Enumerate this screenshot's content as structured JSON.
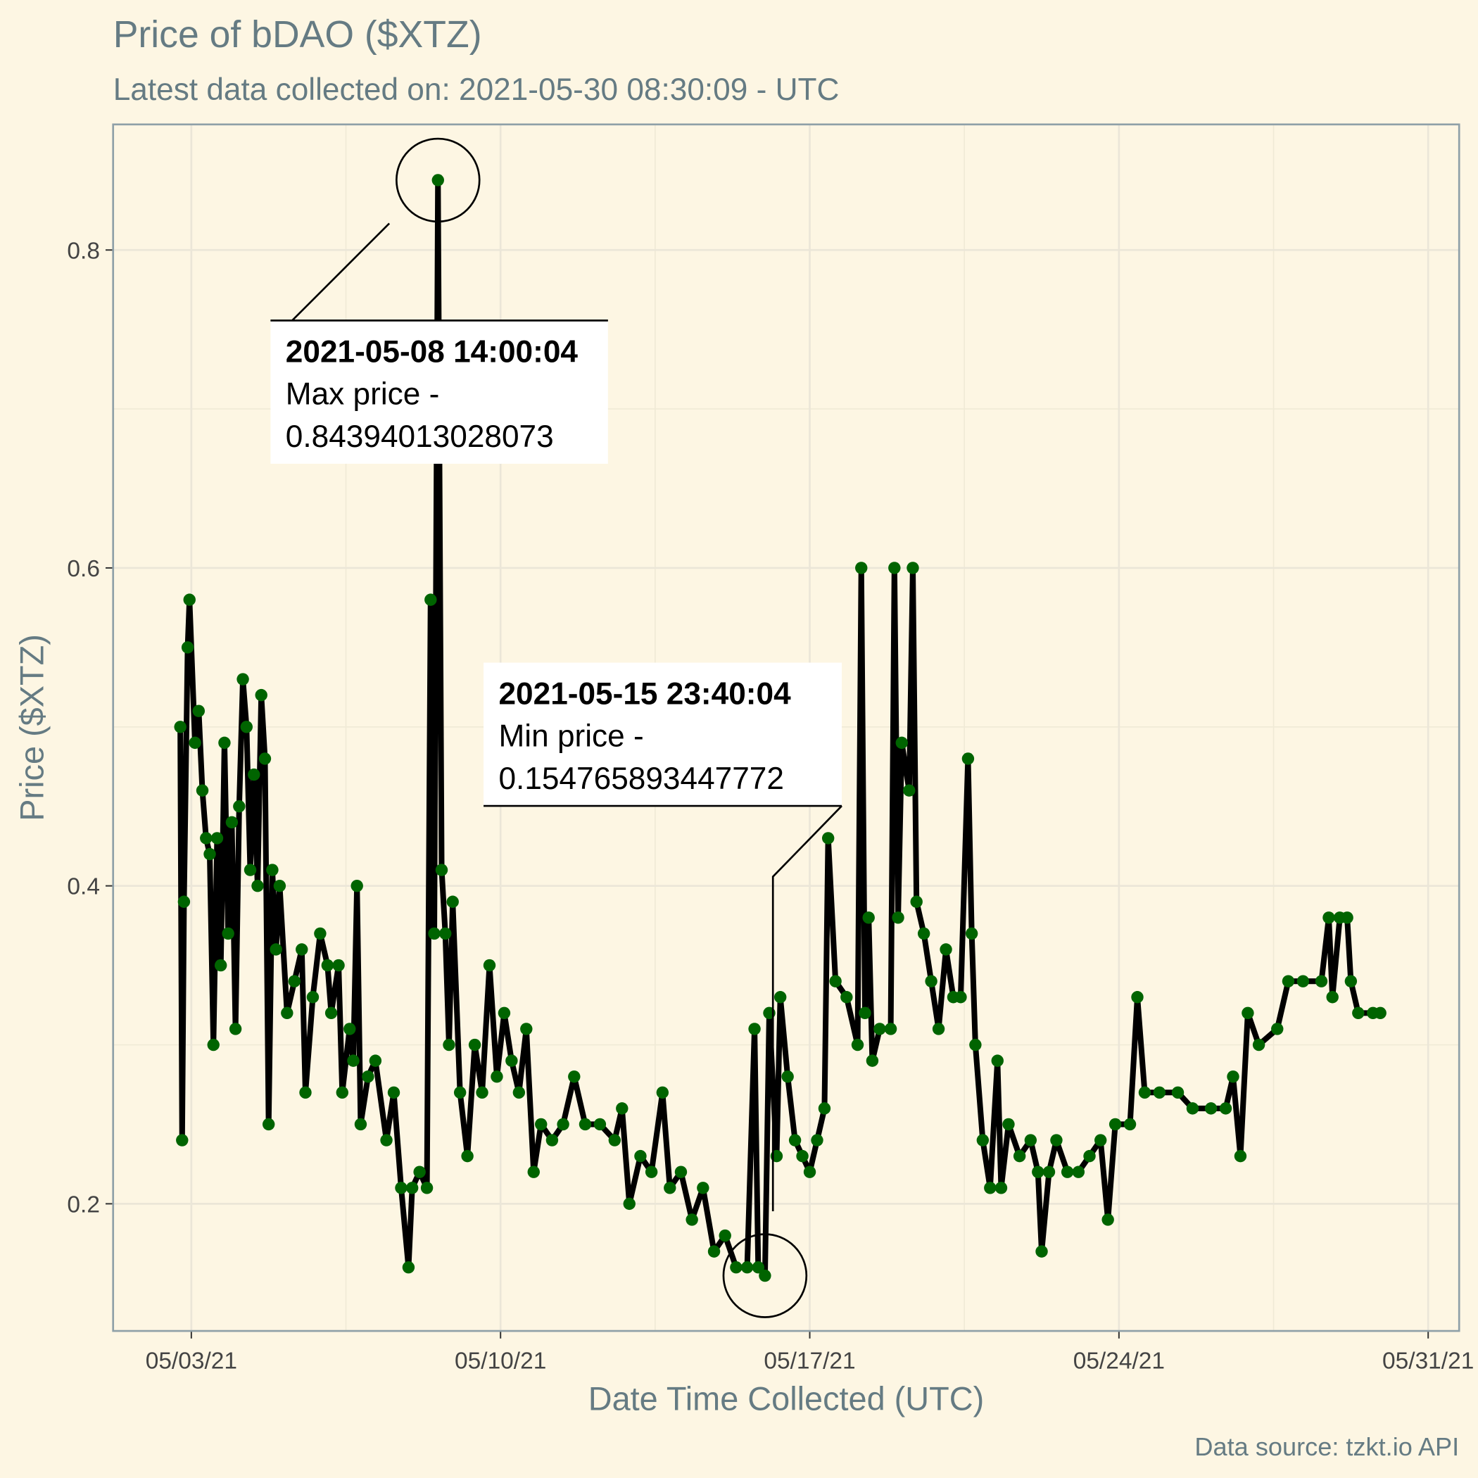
{
  "chart_data": {
    "type": "line",
    "title": "Price of bDAO ($XTZ)",
    "subtitle": "Latest data collected on: 2021-05-30 08:30:09  - UTC",
    "x_label": "Date Time Collected (UTC)",
    "y_label": "Price ($XTZ)",
    "caption": "Data source: tzkt.io API",
    "line_color": "#000000",
    "point_color": "#006400",
    "grid": true,
    "xlim": [
      "2021-05-01 05:30",
      "2021-05-31 16:50"
    ],
    "ylim": [
      0.12,
      0.879
    ],
    "xticks": [
      {
        "value": "2021-05-03 00:00",
        "label": "05/03/21"
      },
      {
        "value": "2021-05-10 00:00",
        "label": "05/10/21"
      },
      {
        "value": "2021-05-17 00:00",
        "label": "05/17/21"
      },
      {
        "value": "2021-05-24 00:00",
        "label": "05/24/21"
      },
      {
        "value": "2021-05-31 00:00",
        "label": "05/31/21"
      }
    ],
    "minor_xticks": [
      "2021-05-06 12:00",
      "2021-05-13 12:00",
      "2021-05-20 12:00",
      "2021-05-27 12:00"
    ],
    "yticks": [
      0.2,
      0.4,
      0.6,
      0.8
    ],
    "minor_yticks": [
      0.3,
      0.5,
      0.7
    ],
    "x": [
      "2021-05-02 18:00",
      "2021-05-02 19:00",
      "2021-05-02 20:00",
      "2021-05-02 22:00",
      "2021-05-02 23:00",
      "2021-05-03 02:00",
      "2021-05-03 04:00",
      "2021-05-03 06:00",
      "2021-05-03 08:00",
      "2021-05-03 10:00",
      "2021-05-03 12:00",
      "2021-05-03 14:00",
      "2021-05-03 16:00",
      "2021-05-03 18:00",
      "2021-05-03 20:00",
      "2021-05-03 22:00",
      "2021-05-04 00:00",
      "2021-05-04 02:00",
      "2021-05-04 04:00",
      "2021-05-04 06:00",
      "2021-05-04 08:00",
      "2021-05-04 10:00",
      "2021-05-04 12:00",
      "2021-05-04 14:00",
      "2021-05-04 16:00",
      "2021-05-04 18:00",
      "2021-05-04 20:00",
      "2021-05-04 22:00",
      "2021-05-05 00:00",
      "2021-05-05 04:00",
      "2021-05-05 08:00",
      "2021-05-05 12:00",
      "2021-05-05 14:00",
      "2021-05-05 18:00",
      "2021-05-05 22:00",
      "2021-05-06 02:00",
      "2021-05-06 04:00",
      "2021-05-06 08:00",
      "2021-05-06 10:00",
      "2021-05-06 14:00",
      "2021-05-06 16:00",
      "2021-05-06 18:00",
      "2021-05-06 20:00",
      "2021-05-07 00:00",
      "2021-05-07 04:00",
      "2021-05-07 10:00",
      "2021-05-07 14:00",
      "2021-05-07 18:00",
      "2021-05-07 22:00",
      "2021-05-08 00:00",
      "2021-05-08 04:00",
      "2021-05-08 08:00",
      "2021-05-08 10:00",
      "2021-05-08 12:00",
      "2021-05-08 14:00",
      "2021-05-08 16:00",
      "2021-05-08 18:00",
      "2021-05-08 20:00",
      "2021-05-08 22:00",
      "2021-05-09 02:00",
      "2021-05-09 06:00",
      "2021-05-09 10:00",
      "2021-05-09 14:00",
      "2021-05-09 18:00",
      "2021-05-09 22:00",
      "2021-05-10 02:00",
      "2021-05-10 06:00",
      "2021-05-10 10:00",
      "2021-05-10 14:00",
      "2021-05-10 18:00",
      "2021-05-10 22:00",
      "2021-05-11 04:00",
      "2021-05-11 10:00",
      "2021-05-11 16:00",
      "2021-05-11 22:00",
      "2021-05-12 06:00",
      "2021-05-12 14:00",
      "2021-05-12 18:00",
      "2021-05-12 22:00",
      "2021-05-13 04:00",
      "2021-05-13 10:00",
      "2021-05-13 16:00",
      "2021-05-13 20:00",
      "2021-05-14 02:00",
      "2021-05-14 08:00",
      "2021-05-14 14:00",
      "2021-05-14 20:00",
      "2021-05-15 02:00",
      "2021-05-15 08:00",
      "2021-05-15 14:00",
      "2021-05-15 18:00",
      "2021-05-15 20:00",
      "2021-05-15 23:40",
      "2021-05-16 02:00",
      "2021-05-16 06:00",
      "2021-05-16 08:00",
      "2021-05-16 12:00",
      "2021-05-16 16:00",
      "2021-05-16 20:00",
      "2021-05-17 00:00",
      "2021-05-17 04:00",
      "2021-05-17 08:00",
      "2021-05-17 10:00",
      "2021-05-17 14:00",
      "2021-05-17 20:00",
      "2021-05-18 02:00",
      "2021-05-18 04:00",
      "2021-05-18 06:00",
      "2021-05-18 08:00",
      "2021-05-18 10:00",
      "2021-05-18 14:00",
      "2021-05-18 20:00",
      "2021-05-18 22:00",
      "2021-05-19 00:00",
      "2021-05-19 02:00",
      "2021-05-19 06:00",
      "2021-05-19 08:00",
      "2021-05-19 10:00",
      "2021-05-19 14:00",
      "2021-05-19 18:00",
      "2021-05-19 22:00",
      "2021-05-20 02:00",
      "2021-05-20 06:00",
      "2021-05-20 10:00",
      "2021-05-20 14:00",
      "2021-05-20 16:00",
      "2021-05-20 18:00",
      "2021-05-20 22:00",
      "2021-05-21 02:00",
      "2021-05-21 06:00",
      "2021-05-21 08:00",
      "2021-05-21 12:00",
      "2021-05-21 18:00",
      "2021-05-22 00:00",
      "2021-05-22 04:00",
      "2021-05-22 06:00",
      "2021-05-22 10:00",
      "2021-05-22 14:00",
      "2021-05-22 20:00",
      "2021-05-23 02:00",
      "2021-05-23 08:00",
      "2021-05-23 14:00",
      "2021-05-23 18:00",
      "2021-05-23 22:00",
      "2021-05-24 06:00",
      "2021-05-24 10:00",
      "2021-05-24 14:00",
      "2021-05-24 22:00",
      "2021-05-25 08:00",
      "2021-05-25 16:00",
      "2021-05-26 02:00",
      "2021-05-26 10:00",
      "2021-05-26 14:00",
      "2021-05-26 18:00",
      "2021-05-26 22:00",
      "2021-05-27 04:00",
      "2021-05-27 14:00",
      "2021-05-27 20:00",
      "2021-05-28 04:00",
      "2021-05-28 14:00",
      "2021-05-28 18:00",
      "2021-05-28 20:00",
      "2021-05-29 00:00",
      "2021-05-29 04:00",
      "2021-05-29 06:00",
      "2021-05-29 10:00",
      "2021-05-29 18:00",
      "2021-05-29 22:00"
    ],
    "values": [
      0.5,
      0.24,
      0.39,
      0.55,
      0.58,
      0.49,
      0.51,
      0.46,
      0.43,
      0.42,
      0.3,
      0.43,
      0.35,
      0.49,
      0.37,
      0.44,
      0.31,
      0.45,
      0.53,
      0.5,
      0.41,
      0.47,
      0.4,
      0.52,
      0.48,
      0.25,
      0.41,
      0.36,
      0.4,
      0.32,
      0.34,
      0.36,
      0.27,
      0.33,
      0.37,
      0.35,
      0.32,
      0.35,
      0.27,
      0.31,
      0.29,
      0.4,
      0.25,
      0.28,
      0.29,
      0.24,
      0.27,
      0.21,
      0.16,
      0.21,
      0.22,
      0.21,
      0.58,
      0.37,
      0.84394013028073,
      0.41,
      0.37,
      0.3,
      0.39,
      0.27,
      0.23,
      0.3,
      0.27,
      0.35,
      0.28,
      0.32,
      0.29,
      0.27,
      0.31,
      0.22,
      0.25,
      0.24,
      0.25,
      0.28,
      0.25,
      0.25,
      0.24,
      0.26,
      0.2,
      0.23,
      0.22,
      0.27,
      0.21,
      0.22,
      0.19,
      0.21,
      0.17,
      0.18,
      0.16,
      0.16,
      0.31,
      0.16,
      0.154765893447772,
      0.32,
      0.23,
      0.33,
      0.28,
      0.24,
      0.23,
      0.22,
      0.24,
      0.26,
      0.43,
      0.34,
      0.33,
      0.3,
      0.6,
      0.32,
      0.38,
      0.29,
      0.31,
      0.31,
      0.6,
      0.38,
      0.49,
      0.46,
      0.6,
      0.39,
      0.37,
      0.34,
      0.31,
      0.36,
      0.33,
      0.33,
      0.48,
      0.37,
      0.3,
      0.24,
      0.21,
      0.29,
      0.21,
      0.25,
      0.23,
      0.24,
      0.22,
      0.17,
      0.22,
      0.24,
      0.22,
      0.22,
      0.23,
      0.24,
      0.19,
      0.25,
      0.25,
      0.33,
      0.27,
      0.27,
      0.27,
      0.26,
      0.26,
      0.26,
      0.28,
      0.23,
      0.32,
      0.3,
      0.31,
      0.34,
      0.34,
      0.34,
      0.38,
      0.33,
      0.38,
      0.38,
      0.34,
      0.32,
      0.32,
      0.32
    ],
    "annotations": [
      {
        "title": "2021-05-08 14:00:04",
        "lines": [
          "Max price -",
          "0.84394013028073"
        ]
      },
      {
        "title": "2021-05-15 23:40:04",
        "lines": [
          "Min price -",
          "0.154765893447772"
        ]
      }
    ]
  }
}
